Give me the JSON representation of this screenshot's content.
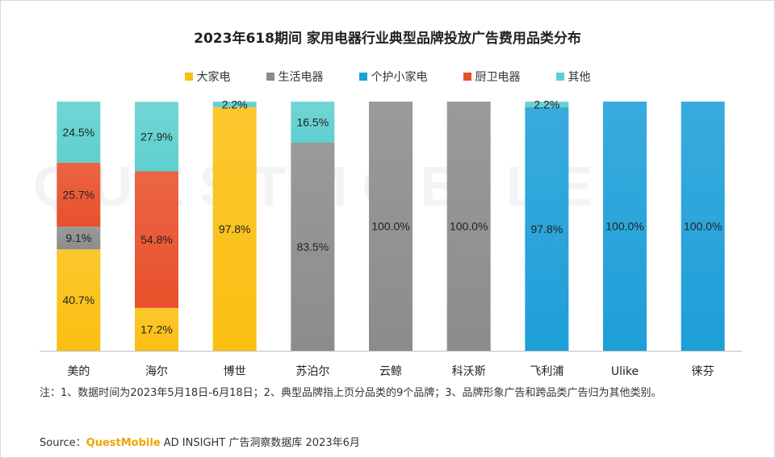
{
  "chart_data": {
    "type": "bar",
    "stacked": true,
    "title": "2023年618期间 家用电器行业典型品牌投放广告费用品类分布",
    "categories": [
      "美的",
      "海尔",
      "博世",
      "苏泊尔",
      "云鲸",
      "科沃斯",
      "飞利浦",
      "Ulike",
      "徕芬"
    ],
    "series": [
      {
        "name": "大家电",
        "color": "#fbbf12",
        "values": [
          40.7,
          17.2,
          97.8,
          0,
          0,
          0,
          0,
          0,
          0
        ]
      },
      {
        "name": "生活电器",
        "color": "#8c8c8c",
        "values": [
          9.1,
          0,
          0,
          83.5,
          100.0,
          100.0,
          0,
          0,
          0
        ]
      },
      {
        "name": "个护小家电",
        "color": "#1e9fd8",
        "values": [
          0,
          0,
          0,
          0,
          0,
          0,
          97.8,
          100.0,
          100.0
        ]
      },
      {
        "name": "厨卫电器",
        "color": "#e8502b",
        "values": [
          25.7,
          54.8,
          0,
          0,
          0,
          0,
          0,
          0,
          0
        ]
      },
      {
        "name": "其他",
        "color": "#5fcfcf",
        "values": [
          24.5,
          27.9,
          2.2,
          16.5,
          0,
          0,
          2.2,
          0,
          0
        ]
      }
    ],
    "value_format": "percent_1dp",
    "ylim": [
      0,
      100
    ],
    "legend_position": "top",
    "grid": false
  },
  "note": "注：1、数据时间为2023年5月18日-6月18日；2、典型品牌指上页分品类的9个品牌；3、品牌形象广告和跨品类广告归为其他类别。",
  "source": {
    "label": "Source：",
    "brand": "QuestMobile",
    "text": " AD INSIGHT 广告洞察数据库 2023年6月"
  },
  "watermark": "QUESTMOBILE"
}
